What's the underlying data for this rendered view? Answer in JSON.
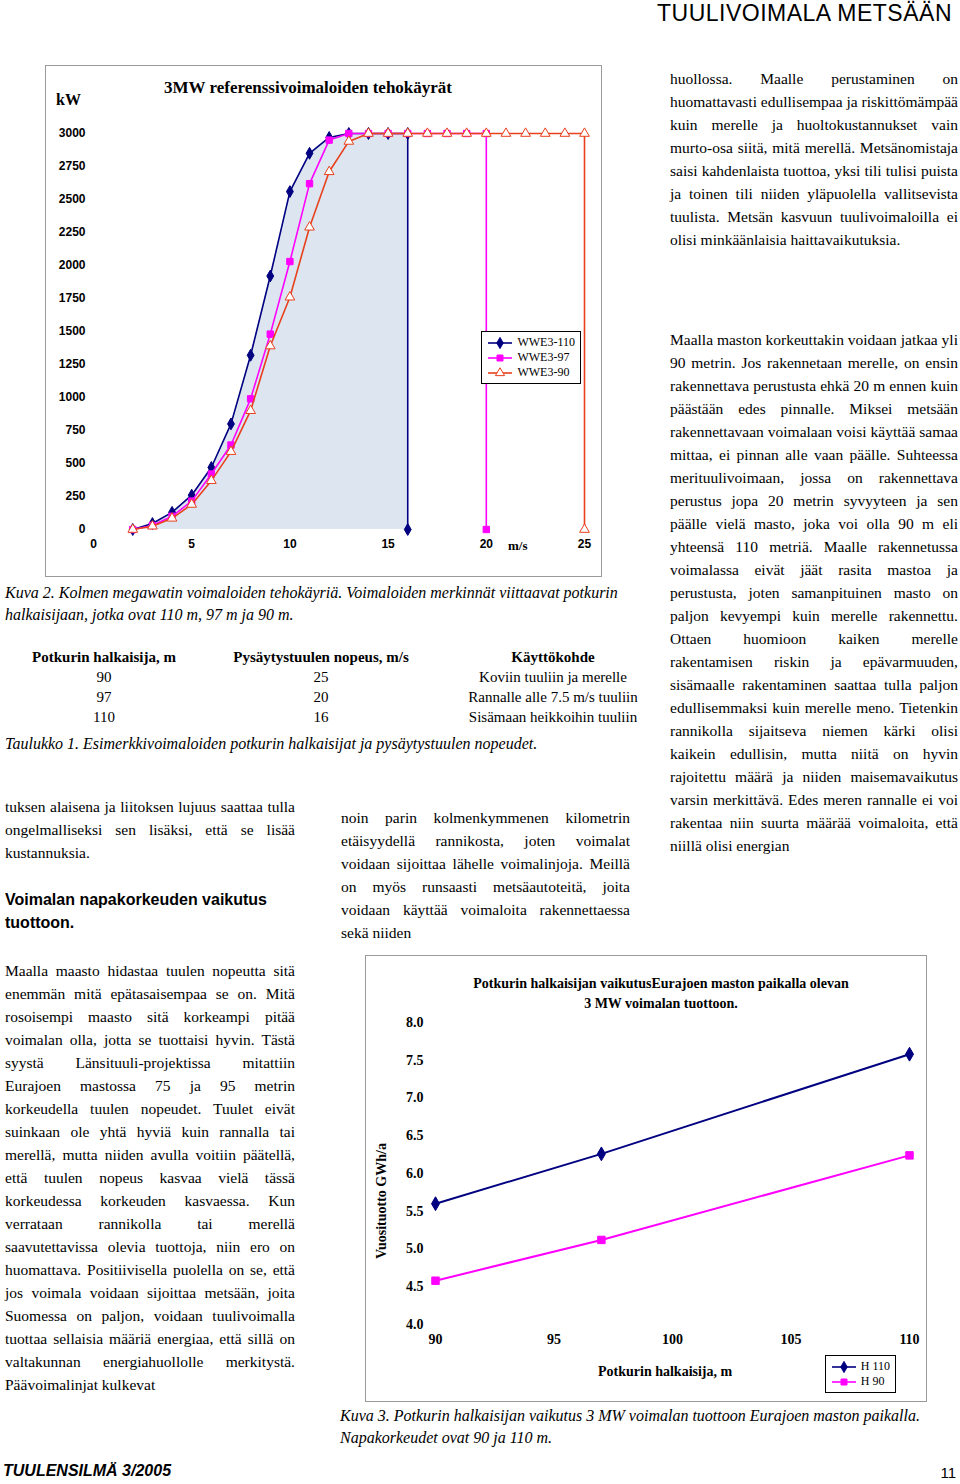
{
  "header": {
    "title": "TUULIVOIMALA METSÄÄN"
  },
  "chart_data": [
    {
      "type": "line",
      "title": "3MW referenssivoimaloiden tehokäyrät",
      "y_label": "kW",
      "x_label": "m/s",
      "xlim": [
        0,
        25
      ],
      "xticks": [
        0,
        5,
        10,
        15,
        20,
        25
      ],
      "ylim": [
        0,
        3000
      ],
      "yticks": [
        0,
        250,
        500,
        750,
        1000,
        1250,
        1500,
        1750,
        2000,
        2250,
        2500,
        2750,
        3000
      ],
      "legend": "right",
      "series": [
        {
          "name": "WWE3-110",
          "color": "#000080",
          "marker": "diamond",
          "type": "area",
          "x": [
            2,
            3,
            4,
            5,
            6,
            7,
            8,
            9,
            10,
            11,
            12,
            13,
            14,
            15,
            16,
            16
          ],
          "values": [
            0,
            45,
            130,
            260,
            470,
            800,
            1320,
            1920,
            2560,
            2850,
            2970,
            3000,
            3000,
            3000,
            3000,
            0
          ]
        },
        {
          "name": "WWE3-97",
          "color": "#ff00ff",
          "marker": "square",
          "x": [
            2,
            3,
            4,
            5,
            6,
            7,
            8,
            9,
            10,
            11,
            12,
            13,
            14,
            15,
            16,
            17,
            18,
            19,
            20,
            20
          ],
          "values": [
            0,
            30,
            100,
            215,
            420,
            640,
            990,
            1480,
            2030,
            2620,
            2950,
            3000,
            3000,
            3000,
            3000,
            3000,
            3000,
            3000,
            3000,
            0
          ]
        },
        {
          "name": "WWE3-90",
          "color": "#e8401c",
          "marker": "triangle",
          "x": [
            2,
            3,
            4,
            5,
            6,
            7,
            8,
            9,
            10,
            11,
            12,
            13,
            14,
            15,
            16,
            17,
            18,
            19,
            20,
            21,
            22,
            23,
            24,
            25,
            25
          ],
          "values": [
            0,
            25,
            85,
            190,
            370,
            590,
            900,
            1390,
            1760,
            2290,
            2710,
            2940,
            3000,
            3000,
            3000,
            3000,
            3000,
            3000,
            3000,
            3000,
            3000,
            3000,
            3000,
            3000,
            0
          ]
        }
      ]
    },
    {
      "type": "line",
      "title": "Potkurin halkaisijan vaikutusEurajoen maston paikalla olevan 3 MW voimalan tuottoon.",
      "x_label": "Potkurin halkaisija, m",
      "y_label": "Vuosituotto GWh/a",
      "xlim": [
        90,
        110
      ],
      "xticks": [
        90,
        95,
        100,
        105,
        110
      ],
      "ylim": [
        4,
        8
      ],
      "yticks": [
        {
          "value": 4,
          "label": "4.0"
        },
        {
          "value": 4.5,
          "label": "4.5"
        },
        {
          "value": 5,
          "label": "5.0"
        },
        {
          "value": 5.5,
          "label": "5.5"
        },
        {
          "value": 6,
          "label": "6.0"
        },
        {
          "value": 6.5,
          "label": "6.5"
        },
        {
          "value": 7,
          "label": "7.0"
        },
        {
          "value": 7.5,
          "label": "7.5"
        },
        {
          "value": 8,
          "label": "8.0"
        }
      ],
      "legend": "bottom-right",
      "x": [
        90,
        97,
        110
      ],
      "series": [
        {
          "name": "H 110",
          "color": "#000080",
          "marker": "diamond",
          "values": [
            5.6,
            6.26,
            7.58
          ]
        },
        {
          "name": "H 90",
          "color": "#ff00ff",
          "marker": "square",
          "values": [
            4.58,
            5.12,
            6.24
          ]
        }
      ]
    }
  ],
  "captions": {
    "kuva2": "Kuva 2. Kolmen megawatin voimaloiden tehokäyriä. Voimaloiden merkinnät viittaavat potkurin halkaisijaan, jotka ovat 110 m, 97 m ja 90 m.",
    "taulukko1": "Taulukko 1. Esimerkkivoimaloiden potkurin halkaisijat ja pysäytystuulen nopeudet.",
    "kuva3": "Kuva 3. Potkurin halkaisijan vaikutus 3 MW voimalan tuottoon Eurajoen maston paikalla. Napakorkeudet ovat 90 ja 110 m."
  },
  "table": {
    "header": [
      "Potkurin halkaisija, m",
      "Pysäytystuulen nopeus, m/s",
      "Käyttökohde"
    ],
    "rows": [
      [
        "90",
        "25",
        "Koviin tuuliin ja merelle"
      ],
      [
        "97",
        "20",
        "Rannalle alle 7.5 m/s tuuliin"
      ],
      [
        "110",
        "16",
        "Sisämaan heikkoihin tuuliin"
      ]
    ]
  },
  "text": {
    "left_intro": "tuksen alaisena ja liitoksen lujuus saattaa tulla ongelmalliseksi sen lisäksi, että se lisää kustannuksia.",
    "left_heading": "Voimalan napakorkeuden vaikutus tuottoon.",
    "left_main": "Maalla maasto hidastaa tuulen nopeutta sitä enemmän mitä epätasaisempaa se on. Mitä rosoisempi maasto sitä korkeampi pitää voimalan olla, jotta se tuottaisi hyvin. Tästä syystä Länsituuli-projektissa mitattiin Eurajoen mastossa 75 ja 95 metrin korkeudella tuulen nopeudet. Tuulet eivät suinkaan ole yhtä hyviä kuin rannalla tai merellä, mutta niiden avulla voitiin päätellä, että tuulen nopeus kasvaa vielä tässä korkeudessa korkeuden kasvaessa. Kun verrataan rannikolla tai merellä saavutettavissa olevia tuottoja, niin ero on huomattava. Positiivisella puolella on se, että jos voimala voidaan sijoittaa metsään, joita Suomessa on paljon, voidaan tuulivoimalla tuottaa sellaisia määriä energiaa, että sillä on valtakunnan energiahuollolle merkitystä. Päävoimalinjat kulkevat",
    "middle": "noin parin kolmenkymmenen kilometrin etäisyydellä rannikosta, joten voimalat voidaan sijoittaa lähelle voimalinjoja. Meillä on myös runsaasti metsäautoteitä, joita voidaan käyttää voimaloita rakennettaessa sekä niiden",
    "right_1": "huollossa. Maalle perustaminen on huomattavasti edullisempaa ja riskittömämpää kuin merelle ja huoltokustannukset vain murto-osa siitä, mitä merellä. Metsänomistaja saisi kahdenlaista tuottoa, yksi tili tulisi puista ja toinen tili niiden yläpuolella vallitsevista tuulista. Metsän kasvuun tuulivoimaloilla ei olisi minkäänlaisia haittavaikutuksia.",
    "right_2": "Maalla maston korkeuttakin voidaan jatkaa yli 90 metrin. Jos rakennetaan merelle, on ensin rakennettava perustusta ehkä 20 m ennen kuin päästään edes pinnalle. Miksei metsään rakennettavaan voimalaan voisi käyttää samaa mittaa, ei pinnan alle vaan päälle. Suhteessa merituulivoimaan, jossa on rakennettava perustus jopa 20 metrin syvyyteen ja sen päälle vielä masto, joka voi olla 90 m eli yhteensä 110 metriä. Maalle rakennetussa voimalassa eivät jäät rasita mastoa ja perustusta, joten samanpituinen masto on paljon kevyempi kuin merelle rakennettu. Ottaen huomioon kaiken merelle rakentamisen riskin ja epävarmuuden, sisämaalle rakentaminen saattaa tulla paljon edullisemmaksi kuin merelle meno. Tietenkin rannikolla sijaitseva niemen kärki olisi kaikein edullisin, mutta niitä on hyvin rajoitettu määrä ja niiden maisemavaikutus varsin merkittävä. Edes meren rannalle ei voi rakentaa niin suurta määrää voimaloita, että niillä olisi energian"
  },
  "footer": {
    "magazine": "TUULENSILMÄ 3/2005",
    "page": "11"
  }
}
